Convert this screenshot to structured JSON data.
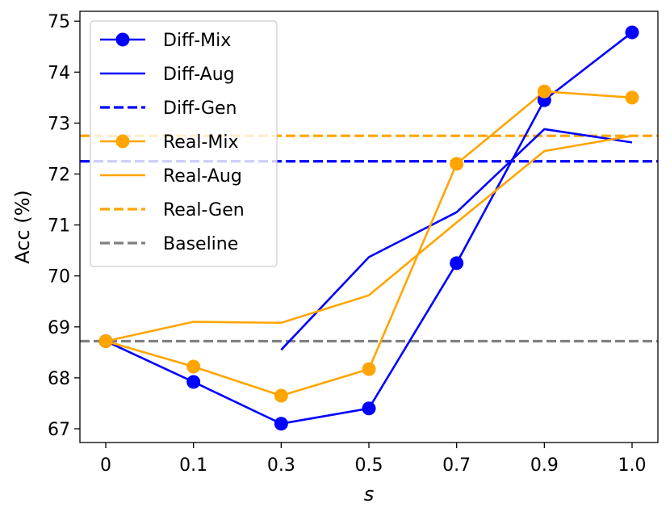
{
  "chart_data": {
    "type": "line",
    "xlabel": "s",
    "ylabel": "Acc (%)",
    "categories": [
      "0",
      "0.1",
      "0.3",
      "0.5",
      "0.7",
      "0.9",
      "1.0"
    ],
    "ylim": [
      66.7,
      75.15
    ],
    "yticks": [
      67,
      68,
      69,
      70,
      71,
      72,
      73,
      74,
      75
    ],
    "legend_position": "top-left",
    "series": [
      {
        "name": "Diff-Mix",
        "style": "line-marker",
        "color": "#0000ff",
        "values": [
          68.72,
          67.92,
          67.1,
          67.4,
          70.25,
          73.45,
          74.78
        ]
      },
      {
        "name": "Diff-Aug",
        "style": "line",
        "color": "#0000ff",
        "values": [
          null,
          null,
          68.55,
          70.37,
          71.25,
          72.88,
          72.62
        ]
      },
      {
        "name": "Diff-Gen",
        "style": "hline-dashed",
        "color": "#0000ff",
        "value": 72.25
      },
      {
        "name": "Real-Mix",
        "style": "line-marker",
        "color": "#ffa500",
        "values": [
          68.72,
          68.22,
          67.65,
          68.17,
          72.2,
          73.62,
          73.5
        ]
      },
      {
        "name": "Real-Aug",
        "style": "line",
        "color": "#ffa500",
        "values": [
          68.72,
          69.1,
          69.08,
          69.62,
          71.05,
          72.45,
          72.75
        ]
      },
      {
        "name": "Real-Gen",
        "style": "hline-dashed",
        "color": "#ffa500",
        "value": 72.75
      },
      {
        "name": "Baseline",
        "style": "hline-dashed",
        "color": "#808080",
        "value": 68.72
      }
    ]
  }
}
